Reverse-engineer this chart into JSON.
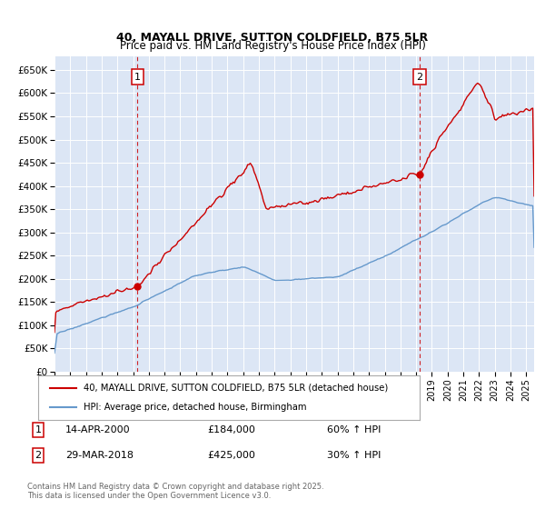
{
  "title1": "40, MAYALL DRIVE, SUTTON COLDFIELD, B75 5LR",
  "title2": "Price paid vs. HM Land Registry's House Price Index (HPI)",
  "ylabel_ticks": [
    "£0",
    "£50K",
    "£100K",
    "£150K",
    "£200K",
    "£250K",
    "£300K",
    "£350K",
    "£400K",
    "£450K",
    "£500K",
    "£550K",
    "£600K",
    "£650K"
  ],
  "ylim": [
    0,
    680000
  ],
  "xlim_start": 1995.0,
  "xlim_end": 2025.5,
  "background_color": "#dce6f5",
  "plot_bg": "#dce6f5",
  "sale1_date": 2000.28,
  "sale1_price": 184000,
  "sale2_date": 2018.23,
  "sale2_price": 425000,
  "legend_line1": "40, MAYALL DRIVE, SUTTON COLDFIELD, B75 5LR (detached house)",
  "legend_line2": "HPI: Average price, detached house, Birmingham",
  "annotation1_label": "1",
  "annotation1_date": "14-APR-2000",
  "annotation1_price": "£184,000",
  "annotation1_hpi": "60% ↑ HPI",
  "annotation2_label": "2",
  "annotation2_date": "29-MAR-2018",
  "annotation2_price": "£425,000",
  "annotation2_hpi": "30% ↑ HPI",
  "footer": "Contains HM Land Registry data © Crown copyright and database right 2025.\nThis data is licensed under the Open Government Licence v3.0.",
  "red_color": "#cc0000",
  "blue_color": "#6699cc"
}
